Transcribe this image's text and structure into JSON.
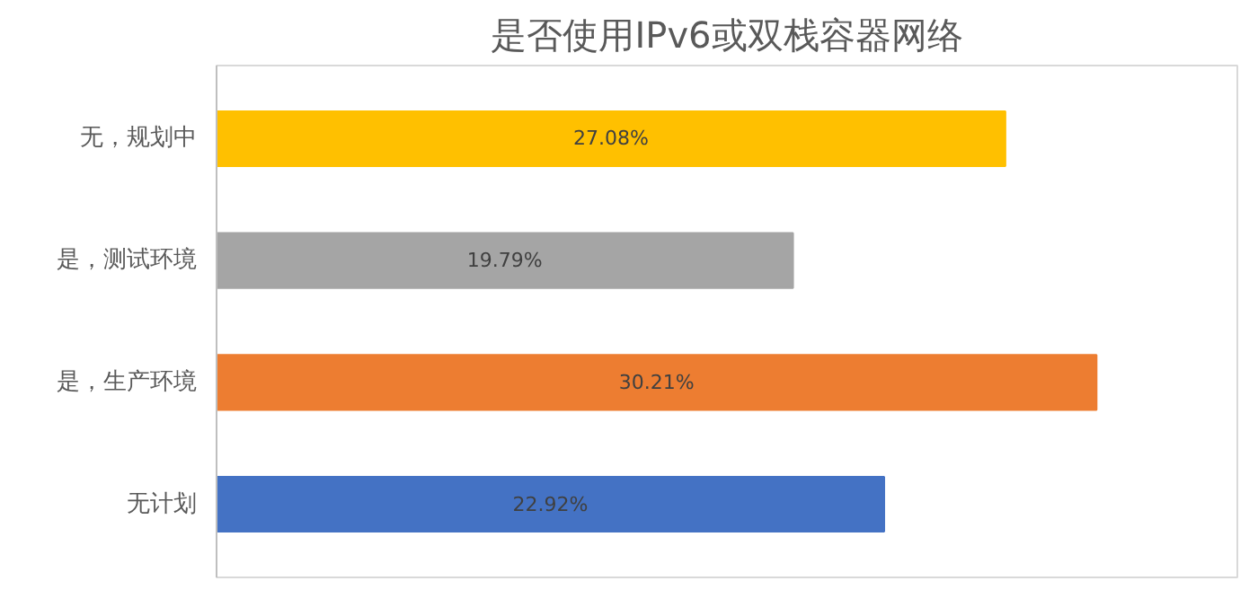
{
  "chart_data": {
    "type": "bar",
    "orientation": "horizontal",
    "title": "是否使用IPv6或双栈容器网络",
    "categories": [
      "无，规划中",
      "是，测试环境",
      "是，生产环境",
      "无计划"
    ],
    "values": [
      27.08,
      19.79,
      30.21,
      22.92
    ],
    "colors": [
      "#ffc000",
      "#a5a5a5",
      "#ed7d31",
      "#4472c4"
    ],
    "value_labels": [
      "27.08%",
      "19.79%",
      "30.21%",
      "22.92%"
    ],
    "grid": false
  }
}
